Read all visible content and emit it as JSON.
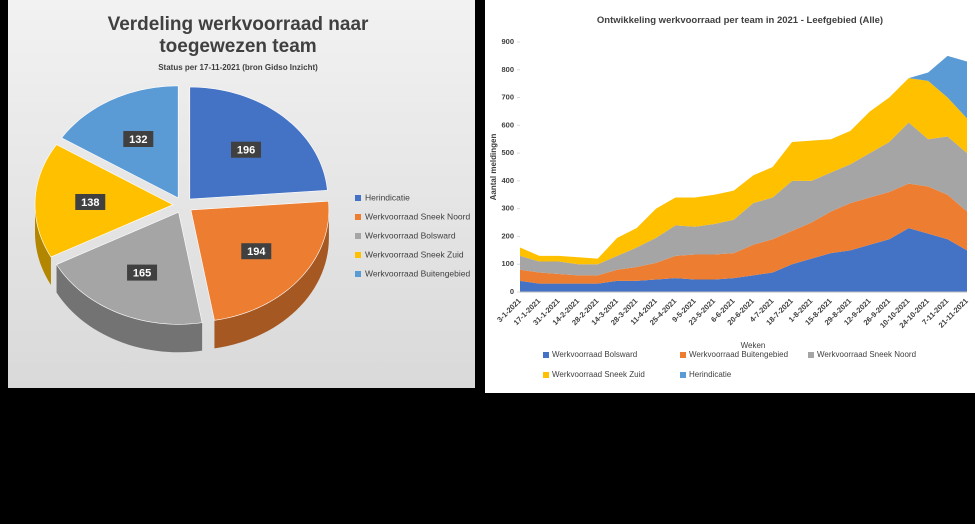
{
  "chart_data": [
    {
      "type": "pie",
      "title": "Verdeling werkvoorraad naar toegewezen team",
      "subtitle": "Status per 17-11-2021 (bron Gidso Inzicht)",
      "categories": [
        "Herindicatie",
        "Werkvoorraad Sneek Noord",
        "Werkvoorraad Bolsward",
        "Werkvoorraad Sneek Zuid",
        "Werkvoorraad Buitengebied"
      ],
      "values": [
        196,
        194,
        165,
        138,
        132
      ],
      "colors": [
        "#4472c4",
        "#ed7d31",
        "#a5a5a5",
        "#ffc000",
        "#5b9bd5"
      ]
    },
    {
      "type": "area",
      "title": "Ontwikkeling werkvoorraad per team in 2021 - Leefgebied (Alle)",
      "xlabel": "Weken",
      "ylabel": "Aantal meldingen",
      "categories": [
        "3-1-2021",
        "17-1-2021",
        "31-1-2021",
        "14-2-2021",
        "28-2-2021",
        "14-3-2021",
        "28-3-2021",
        "11-4-2021",
        "25-4-2021",
        "9-5-2021",
        "23-5-2021",
        "6-6-2021",
        "20-6-2021",
        "4-7-2021",
        "18-7-2021",
        "1-8-2021",
        "15-8-2021",
        "29-8-2021",
        "12-9-2021",
        "26-9-2021",
        "10-10-2021",
        "24-10-2021",
        "7-11-2021",
        "21-11-2021"
      ],
      "series": [
        {
          "name": "Werkvoorraad Bolsward",
          "color": "#4472c4",
          "values": [
            40,
            30,
            30,
            30,
            30,
            40,
            40,
            45,
            50,
            45,
            45,
            50,
            60,
            70,
            100,
            120,
            140,
            150,
            170,
            190,
            230,
            210,
            190,
            150
          ]
        },
        {
          "name": "Werkvoorraad Buitengebied",
          "color": "#ed7d31",
          "values": [
            40,
            40,
            35,
            30,
            30,
            40,
            50,
            60,
            80,
            90,
            90,
            90,
            110,
            120,
            120,
            130,
            150,
            170,
            170,
            170,
            160,
            170,
            160,
            140
          ]
        },
        {
          "name": "Werkvoorraad Sneek Noord",
          "color": "#a5a5a5",
          "values": [
            50,
            40,
            45,
            40,
            40,
            50,
            70,
            90,
            110,
            100,
            110,
            120,
            150,
            150,
            180,
            150,
            140,
            140,
            160,
            180,
            220,
            170,
            210,
            210
          ]
        },
        {
          "name": "Werkvoorraad Sneek Zuid",
          "color": "#ffc000",
          "values": [
            30,
            20,
            20,
            25,
            20,
            65,
            70,
            105,
            100,
            105,
            105,
            105,
            100,
            110,
            140,
            145,
            120,
            120,
            150,
            160,
            160,
            210,
            140,
            125
          ]
        },
        {
          "name": "Herindicatie",
          "color": "#5b9bd5",
          "values": [
            0,
            0,
            0,
            0,
            0,
            0,
            0,
            0,
            0,
            0,
            0,
            0,
            0,
            0,
            0,
            0,
            0,
            0,
            0,
            0,
            0,
            30,
            150,
            205
          ]
        }
      ],
      "ylim": [
        0,
        900
      ],
      "yticks": [
        0,
        100,
        200,
        300,
        400,
        500,
        600,
        700,
        800,
        900
      ]
    }
  ]
}
